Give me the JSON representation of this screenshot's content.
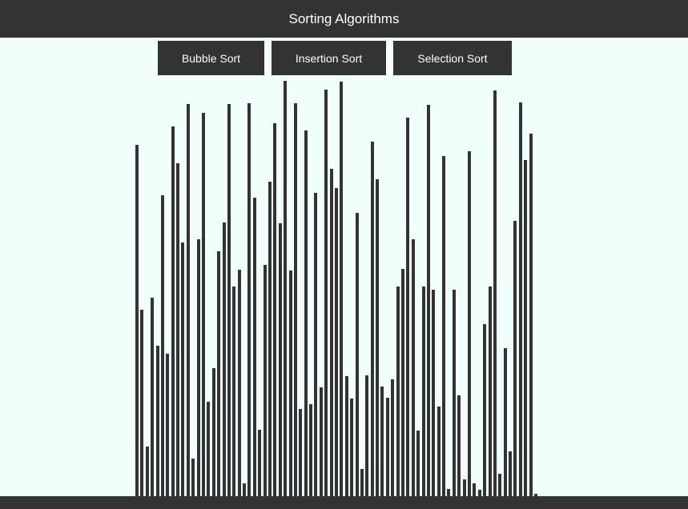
{
  "header": {
    "title": "Sorting Algorithms"
  },
  "toolbar": {
    "buttons": [
      {
        "label": "Bubble Sort"
      },
      {
        "label": "Insertion Sort"
      },
      {
        "label": "Selection Sort"
      }
    ]
  },
  "colors": {
    "bar": "#333333",
    "background": "#f0fffc",
    "header": "#333333"
  },
  "chart_data": {
    "type": "bar",
    "values": [
      376,
      199,
      53,
      212,
      161,
      322,
      152,
      395,
      356,
      271,
      419,
      40,
      275,
      410,
      101,
      137,
      262,
      293,
      419,
      224,
      242,
      14,
      420,
      319,
      71,
      247,
      336,
      399,
      292,
      444,
      241,
      420,
      93,
      391,
      98,
      324,
      116,
      435,
      350,
      329,
      443,
      128,
      104,
      303,
      29,
      129,
      379,
      339,
      117,
      105,
      125,
      224,
      243,
      405,
      275,
      70,
      224,
      418,
      221,
      96,
      364,
      8,
      221,
      108,
      18,
      369,
      14,
      7,
      184,
      224,
      434,
      24,
      158,
      48,
      294,
      421,
      359,
      388,
      3
    ],
    "ylim": [
      0,
      450
    ]
  }
}
